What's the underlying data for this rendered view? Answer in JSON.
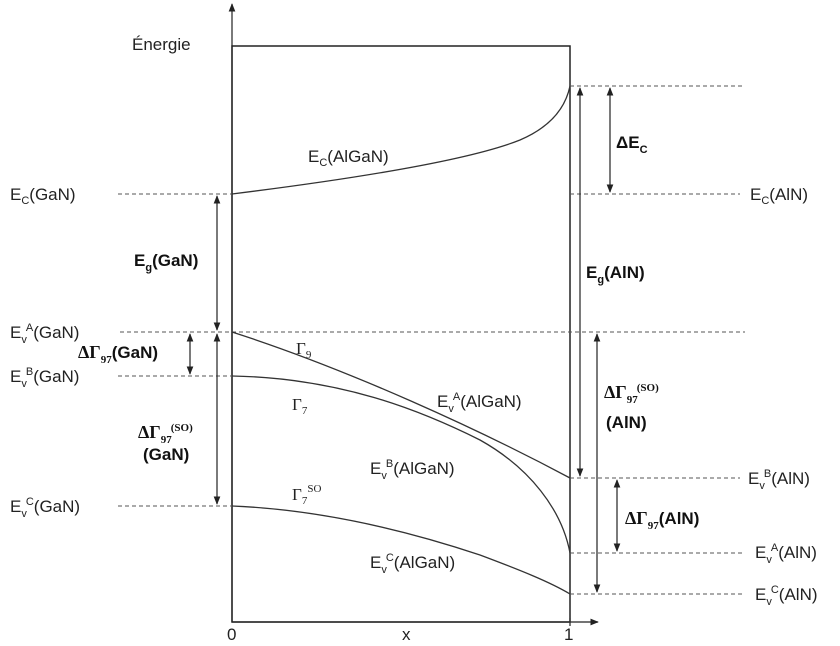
{
  "axes": {
    "y_label": "Énergie",
    "x_label": "x",
    "x_tick_0": "0",
    "x_tick_1": "1"
  },
  "left_labels": {
    "ec": {
      "base": "E",
      "sub": "C",
      "tail": "(GaN)"
    },
    "eva": {
      "base": "E",
      "sub": "v",
      "sup": "A",
      "tail": "(GaN)"
    },
    "evb": {
      "base": "E",
      "sub": "v",
      "sup": "B",
      "tail": "(GaN)"
    },
    "evc": {
      "base": "E",
      "sub": "v",
      "sup": "C",
      "tail": "(GaN)"
    }
  },
  "right_labels": {
    "ec": {
      "base": "E",
      "sub": "C",
      "tail": "(AlN)"
    },
    "evb": {
      "base": "E",
      "sub": "v",
      "sup": "B",
      "tail": "(AlN)"
    },
    "eva": {
      "base": "E",
      "sub": "v",
      "sup": "A",
      "tail": "(AlN)"
    },
    "evc": {
      "base": "E",
      "sub": "v",
      "sup": "C",
      "tail": "(AlN)"
    }
  },
  "curve_labels": {
    "ec_algan": {
      "base": "E",
      "sub": "C",
      "tail": "(AlGaN)"
    },
    "eva_algan": {
      "base": "E",
      "sub": "v",
      "sup": "A",
      "tail": "(AlGaN)"
    },
    "evb_algan": {
      "base": "E",
      "sub": "v",
      "sup": "B",
      "tail": "(AlGaN)"
    },
    "evc_algan": {
      "base": "E",
      "sub": "v",
      "sup": "C",
      "tail": "(AlGaN)"
    },
    "gamma9": {
      "base": "Γ",
      "sub": "9"
    },
    "gamma7": {
      "base": "Γ",
      "sub": "7"
    },
    "gamma7so": {
      "base": "Γ",
      "sub": "7",
      "sup": "SO"
    }
  },
  "gap_labels": {
    "delta_ec": {
      "base": "ΔE",
      "sub": "C"
    },
    "eg_gan": {
      "base": "E",
      "sub": "g",
      "tail": "(GaN)"
    },
    "eg_aln": {
      "base": "E",
      "sub": "g",
      "tail": "(AlN)"
    },
    "dg97_gan": {
      "base": "ΔΓ",
      "sub": "97",
      "tail": "(GaN)"
    },
    "dg97so_gan": {
      "base": "ΔΓ",
      "sub": "97",
      "sup": "(SO)",
      "line2": "(GaN)"
    },
    "dg97so_aln": {
      "base": "ΔΓ",
      "sub": "97",
      "sup": "(SO)",
      "line2": "(AlN)"
    },
    "dg97_aln": {
      "base": "ΔΓ",
      "sub": "97",
      "tail": "(AlN)"
    }
  }
}
